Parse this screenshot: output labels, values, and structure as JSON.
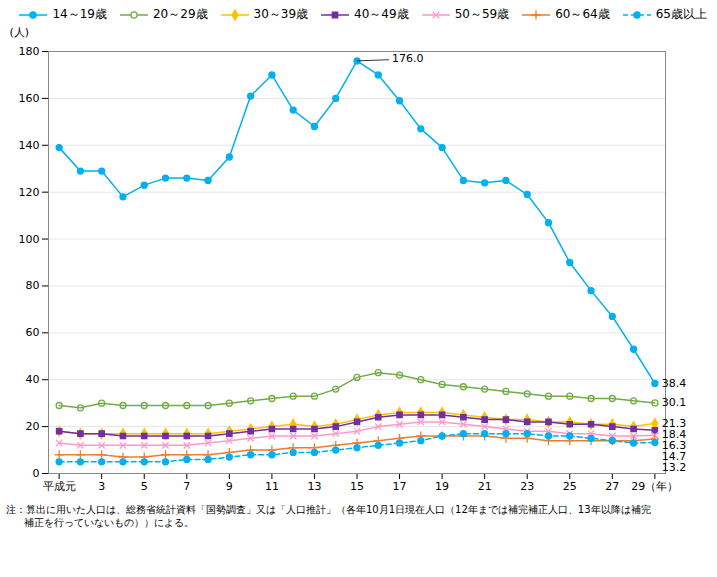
{
  "chart_data": {
    "type": "line",
    "ylabel": "(人)",
    "x": [
      1,
      2,
      3,
      4,
      5,
      6,
      7,
      8,
      9,
      10,
      11,
      12,
      13,
      14,
      15,
      16,
      17,
      18,
      19,
      20,
      21,
      22,
      23,
      24,
      25,
      26,
      27,
      28,
      29
    ],
    "xlim": [
      0.5,
      29.5
    ],
    "xticks": [
      {
        "value": 1,
        "label": "平成元"
      },
      3,
      5,
      7,
      9,
      11,
      13,
      15,
      17,
      19,
      21,
      23,
      25,
      27,
      {
        "value": 29,
        "label": "29（年）"
      }
    ],
    "ylim": [
      0,
      180
    ],
    "yticks": [
      0,
      20,
      40,
      60,
      80,
      100,
      120,
      140,
      160,
      180
    ],
    "grid": true,
    "legend": "top-right",
    "series": [
      {
        "name": "14～19歳",
        "color": "#00b0f0",
        "marker": "circle",
        "line_style": "solid",
        "values": [
          139,
          129,
          129,
          118,
          123,
          126,
          126,
          125,
          135,
          161,
          170,
          155,
          148,
          160,
          176,
          170,
          159,
          147,
          139,
          125,
          124,
          125,
          119,
          107,
          90,
          78,
          67,
          53,
          38.4
        ]
      },
      {
        "name": "20～29歳",
        "color": "#70ad47",
        "marker": "circle-open",
        "line_style": "solid",
        "values": [
          29,
          28,
          30,
          29,
          29,
          29,
          29,
          29,
          30,
          31,
          32,
          33,
          33,
          36,
          41,
          43,
          42,
          40,
          38,
          37,
          36,
          35,
          34,
          33,
          33,
          32,
          32,
          31,
          30.1
        ]
      },
      {
        "name": "30～39歳",
        "color": "#ffc000",
        "marker": "diamond",
        "line_style": "solid",
        "values": [
          18,
          17,
          17,
          17,
          17,
          17,
          17,
          17,
          18,
          19,
          20,
          21,
          20,
          21,
          23,
          25,
          26,
          26,
          26,
          25,
          24,
          23,
          23,
          22,
          22,
          21,
          21,
          20,
          21.3
        ]
      },
      {
        "name": "40～49歳",
        "color": "#7030a0",
        "marker": "square",
        "line_style": "solid",
        "values": [
          18,
          17,
          17,
          16,
          16,
          16,
          16,
          16,
          17,
          18,
          19,
          19,
          19,
          20,
          22,
          24,
          25,
          25,
          25,
          24,
          23,
          23,
          22,
          22,
          21,
          21,
          20,
          19,
          18.4
        ]
      },
      {
        "name": "50～59歳",
        "color": "#ff99cc",
        "marker": "times",
        "line_style": "solid",
        "values": [
          13,
          12,
          12,
          12,
          12,
          12,
          12,
          13,
          14,
          15,
          16,
          16,
          16,
          17,
          18,
          20,
          21,
          22,
          22,
          21,
          20,
          19,
          18,
          18,
          17,
          17,
          16,
          16,
          16.3
        ]
      },
      {
        "name": "60～64歳",
        "color": "#ed7d31",
        "marker": "plus",
        "line_style": "solid",
        "values": [
          8,
          8,
          8,
          7,
          7,
          8,
          8,
          8,
          9,
          10,
          10,
          11,
          11,
          12,
          13,
          14,
          15,
          16,
          16,
          16,
          16,
          15,
          15,
          14,
          14,
          14,
          14,
          14,
          14.7
        ]
      },
      {
        "name": "65歳以上",
        "color": "#00b0f0",
        "marker": "circle",
        "line_style": "dashed",
        "values": [
          5,
          5,
          5,
          5,
          5,
          5,
          6,
          6,
          7,
          8,
          8,
          9,
          9,
          10,
          11,
          12,
          13,
          14,
          16,
          17,
          17,
          17,
          17,
          16,
          16,
          15,
          14,
          13,
          13.2
        ]
      }
    ],
    "annotations": [
      {
        "text": "176.0",
        "x": 15,
        "y": 176.0
      }
    ],
    "end_labels": [
      {
        "text": "38.4",
        "x": 29,
        "y": 38.4
      },
      {
        "text": "30.1",
        "x": 29,
        "y": 30.1
      },
      {
        "text": "21.3",
        "x": 29,
        "y": 21.3
      },
      {
        "text": "18.4",
        "x": 29,
        "y": 18.4
      },
      {
        "text": "16.3",
        "x": 29,
        "y": 16.3
      },
      {
        "text": "14.7",
        "x": 29,
        "y": 14.7
      },
      {
        "text": "13.2",
        "x": 29,
        "y": 13.2
      }
    ],
    "footnotes": [
      "注：算出に用いた人口は、総務省統計資料「国勢調査」又は「人口推計」（各年10月1日現在人口（12年までは補完補正人口、13年以降は補完",
      "補正を行っていないもの））による。"
    ]
  }
}
